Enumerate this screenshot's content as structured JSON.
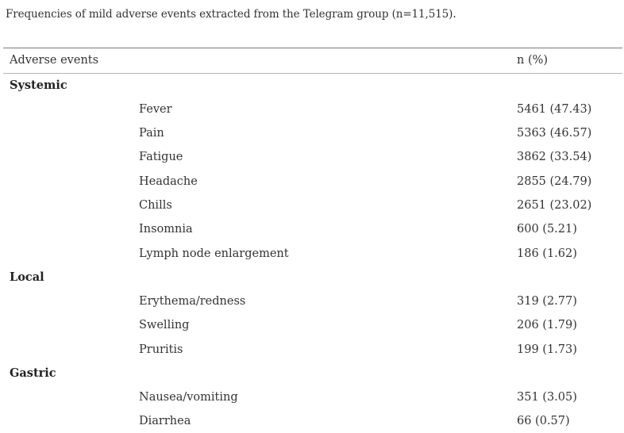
{
  "caption": "Frequencies of mild adverse events extracted from the Telegram group (n=11,515).",
  "table": {
    "headers": [
      "Adverse events",
      "n (%)"
    ],
    "groups": [
      {
        "name": "Systemic",
        "rows": [
          {
            "event": "Fever",
            "value": "5461 (47.43)"
          },
          {
            "event": "Pain",
            "value": "5363 (46.57)"
          },
          {
            "event": "Fatigue",
            "value": "3862 (33.54)"
          },
          {
            "event": "Headache",
            "value": "2855 (24.79)"
          },
          {
            "event": "Chills",
            "value": "2651 (23.02)"
          },
          {
            "event": "Insomnia",
            "value": "600 (5.21)"
          },
          {
            "event": "Lymph node enlargement",
            "value": "186 (1.62)"
          }
        ]
      },
      {
        "name": "Local",
        "rows": [
          {
            "event": "Erythema/redness",
            "value": "319 (2.77)"
          },
          {
            "event": "Swelling",
            "value": "206 (1.79)"
          },
          {
            "event": "Pruritis",
            "value": "199 (1.73)"
          }
        ]
      },
      {
        "name": "Gastric",
        "rows": [
          {
            "event": "Nausea/vomiting",
            "value": "351 (3.05)"
          },
          {
            "event": "Diarrhea",
            "value": "66 (0.57)"
          }
        ]
      }
    ]
  }
}
